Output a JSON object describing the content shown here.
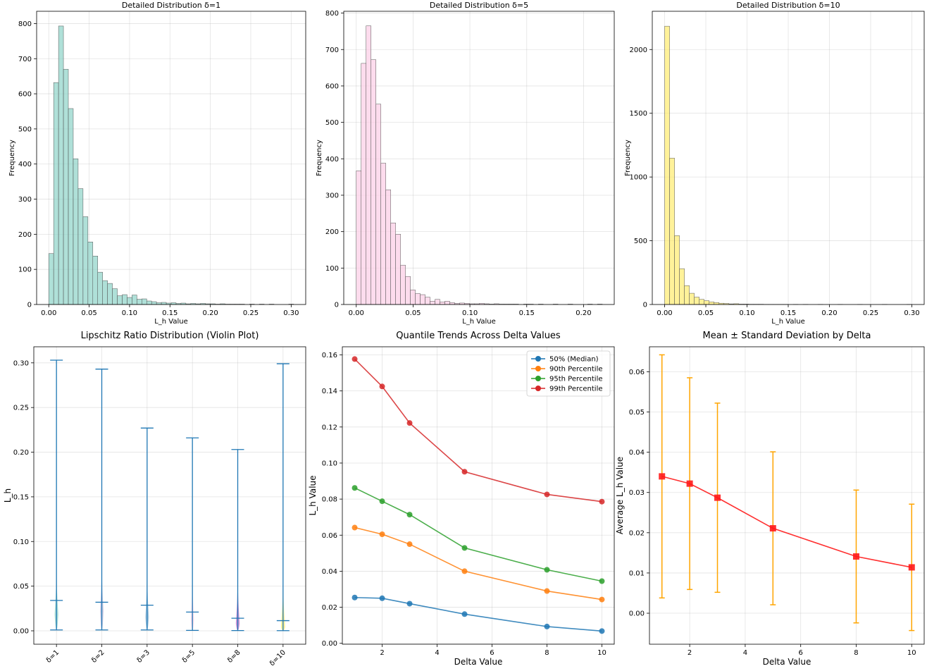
{
  "figure": {
    "domain": "chart figure"
  },
  "chart_data": [
    {
      "type": "bar",
      "subtype": "histogram",
      "title": "Detailed Distribution δ=1",
      "xlabel": "L_h Value",
      "ylabel": "Frequency",
      "color": "#8dd3c7",
      "xlim": [
        -0.015,
        0.318
      ],
      "ylim": [
        0,
        835
      ],
      "xticks": [
        0,
        0.05,
        0.1,
        0.15,
        0.2,
        0.25,
        0.3
      ],
      "xtick_labels": [
        "0.00",
        "0.05",
        "0.10",
        "0.15",
        "0.20",
        "0.25",
        "0.30"
      ],
      "yticks": [
        0,
        100,
        200,
        300,
        400,
        500,
        600,
        700,
        800
      ],
      "ytick_labels": [
        "0",
        "100",
        "200",
        "300",
        "400",
        "500",
        "600",
        "700",
        "800"
      ],
      "bin_start": 0.0,
      "bin_width": 0.00606,
      "values": [
        145,
        632,
        793,
        670,
        558,
        415,
        330,
        250,
        178,
        138,
        92,
        68,
        60,
        45,
        25,
        28,
        20,
        27,
        15,
        16,
        10,
        8,
        5,
        6,
        4,
        5,
        3,
        4,
        2,
        3,
        2,
        3,
        2,
        2,
        1,
        2,
        1,
        1,
        1,
        1,
        0,
        1,
        0,
        1,
        0,
        1,
        0,
        0,
        0,
        1
      ]
    },
    {
      "type": "bar",
      "subtype": "histogram",
      "title": "Detailed Distribution δ=5",
      "xlabel": "L_h Value",
      "ylabel": "Frequency",
      "color": "#fccde5",
      "xlim": [
        -0.011,
        0.227
      ],
      "ylim": [
        0,
        805
      ],
      "xticks": [
        0,
        0.05,
        0.1,
        0.15,
        0.2
      ],
      "xtick_labels": [
        "0.00",
        "0.05",
        "0.10",
        "0.15",
        "0.20"
      ],
      "yticks": [
        0,
        100,
        200,
        300,
        400,
        500,
        600,
        700,
        800
      ],
      "ytick_labels": [
        "0",
        "100",
        "200",
        "300",
        "400",
        "500",
        "600",
        "700",
        "800"
      ],
      "bin_start": 0.0,
      "bin_width": 0.00433,
      "values": [
        367,
        662,
        765,
        672,
        550,
        388,
        315,
        224,
        193,
        108,
        77,
        40,
        30,
        27,
        20,
        9,
        14,
        7,
        9,
        5,
        3,
        4,
        3,
        2,
        2,
        3,
        2,
        1,
        2,
        1,
        1,
        1,
        1,
        0,
        1,
        1,
        0,
        1,
        0,
        0,
        1,
        0,
        0,
        1,
        0,
        0,
        0,
        1,
        0,
        1
      ]
    },
    {
      "type": "bar",
      "subtype": "histogram",
      "title": "Detailed Distribution δ=10",
      "xlabel": "L_h Value",
      "ylabel": "Frequency",
      "color": "#ffed6f",
      "xlim": [
        -0.015,
        0.315
      ],
      "ylim": [
        0,
        2300
      ],
      "xticks": [
        0,
        0.05,
        0.1,
        0.15,
        0.2,
        0.25,
        0.3
      ],
      "xtick_labels": [
        "0.00",
        "0.05",
        "0.10",
        "0.15",
        "0.20",
        "0.25",
        "0.30"
      ],
      "yticks": [
        0,
        500,
        1000,
        1500,
        2000
      ],
      "ytick_labels": [
        "0",
        "500",
        "1000",
        "1500",
        "2000"
      ],
      "bin_start": 0.0,
      "bin_width": 0.006,
      "values": [
        2183,
        1148,
        540,
        281,
        148,
        88,
        58,
        40,
        30,
        20,
        15,
        10,
        8,
        5,
        6,
        3,
        3,
        2,
        2,
        2,
        1,
        1,
        1,
        1,
        1,
        0,
        1,
        0,
        1,
        0,
        0,
        1,
        0,
        0,
        0,
        1,
        0,
        0,
        0,
        1,
        0,
        0,
        0,
        0,
        1,
        0,
        0,
        0,
        0,
        1
      ]
    },
    {
      "type": "violin",
      "title": "Lipschitz Ratio Distribution (Violin Plot)",
      "xlabel": "",
      "ylabel": "L_h",
      "ylim": [
        -0.015,
        0.318
      ],
      "yticks": [
        0,
        0.05,
        0.1,
        0.15,
        0.2,
        0.25,
        0.3
      ],
      "ytick_labels": [
        "0.00",
        "0.05",
        "0.10",
        "0.15",
        "0.20",
        "0.25",
        "0.30"
      ],
      "categories": [
        "δ=1",
        "δ=2",
        "δ=3",
        "δ=5",
        "δ=8",
        "δ=10"
      ],
      "means": [
        0.034,
        0.032,
        0.0287,
        0.021,
        0.0141,
        0.0114
      ],
      "mins": [
        0.001,
        0.001,
        0.001,
        0.0005,
        0.0003,
        0.0002
      ],
      "maxs": [
        0.303,
        0.293,
        0.227,
        0.216,
        0.203,
        0.299
      ],
      "modes": [
        0.018,
        0.022,
        0.015,
        0.012,
        0.008,
        0.004
      ],
      "half_widths": [
        0.045,
        0.043,
        0.043,
        0.038,
        0.046,
        0.052
      ],
      "colors": [
        "#8dd3c7",
        "#bebada",
        "#80b1d3",
        "#fccde5",
        "#b668c6",
        "#ffed6f"
      ],
      "line_color": "#1f77b4"
    },
    {
      "type": "line",
      "title": "Quantile Trends Across Delta Values",
      "xlabel": "Delta Value",
      "ylabel": "L_h Value",
      "xlim": [
        0.55,
        10.45
      ],
      "ylim": [
        -0.0005,
        0.1645
      ],
      "xticks": [
        2,
        4,
        6,
        8,
        10
      ],
      "xtick_labels": [
        "2",
        "4",
        "6",
        "8",
        "10"
      ],
      "yticks": [
        0,
        0.02,
        0.04,
        0.06,
        0.08,
        0.1,
        0.12,
        0.14,
        0.16
      ],
      "ytick_labels": [
        "0.00",
        "0.02",
        "0.04",
        "0.06",
        "0.08",
        "0.10",
        "0.12",
        "0.14",
        "0.16"
      ],
      "x": [
        1,
        2,
        3,
        5,
        8,
        10
      ],
      "series": [
        {
          "name": "50% (Median)",
          "color": "#1f77b4",
          "values": [
            0.0254,
            0.025,
            0.022,
            0.0162,
            0.0093,
            0.0068
          ]
        },
        {
          "name": "90th Percentile",
          "color": "#ff7f0e",
          "values": [
            0.0642,
            0.0605,
            0.055,
            0.04,
            0.029,
            0.0243
          ]
        },
        {
          "name": "95th Percentile",
          "color": "#2ca02c",
          "values": [
            0.0862,
            0.0788,
            0.0714,
            0.0529,
            0.0408,
            0.0345
          ]
        },
        {
          "name": "99th Percentile",
          "color": "#d62728",
          "values": [
            0.1577,
            0.1425,
            0.1222,
            0.0952,
            0.0826,
            0.0786
          ]
        }
      ],
      "legend_position": "top-right"
    },
    {
      "type": "errorbar",
      "title": "Mean ± Standard Deviation by Delta",
      "xlabel": "Delta Value",
      "ylabel": "Average L_h Value",
      "xlim": [
        0.55,
        10.45
      ],
      "ylim": [
        -0.0077,
        0.0662
      ],
      "xticks": [
        2,
        4,
        6,
        8,
        10
      ],
      "xtick_labels": [
        "2",
        "4",
        "6",
        "8",
        "10"
      ],
      "yticks": [
        0,
        0.01,
        0.02,
        0.03,
        0.04,
        0.05,
        0.06
      ],
      "ytick_labels": [
        "0.00",
        "0.01",
        "0.02",
        "0.03",
        "0.04",
        "0.05",
        "0.06"
      ],
      "x": [
        1,
        2,
        3,
        5,
        8,
        10
      ],
      "means": [
        0.034,
        0.0322,
        0.0287,
        0.0211,
        0.0141,
        0.0114
      ],
      "std": [
        0.0302,
        0.0263,
        0.0235,
        0.019,
        0.0165,
        0.0157
      ],
      "line_color": "#ff1a1a",
      "error_color": "#ffa500"
    }
  ]
}
